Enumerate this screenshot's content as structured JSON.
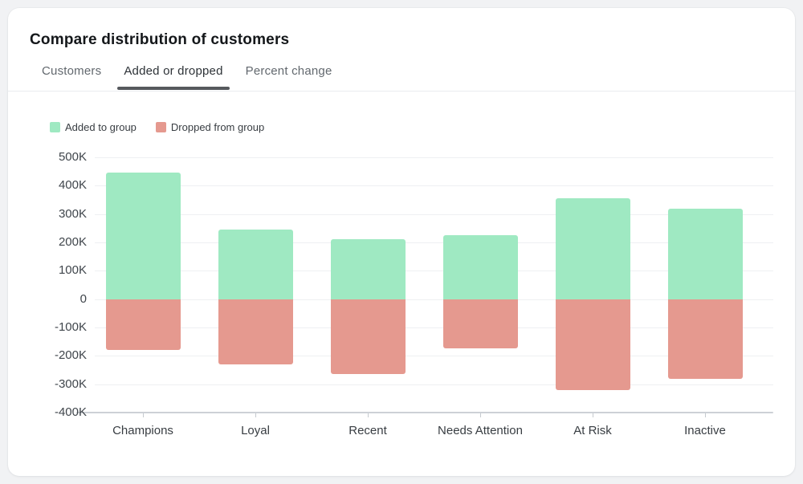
{
  "header": {
    "title": "Compare distribution of customers"
  },
  "tabs": [
    {
      "label": "Customers",
      "active": false
    },
    {
      "label": "Added or dropped",
      "active": true
    },
    {
      "label": "Percent change",
      "active": false
    }
  ],
  "ui": {
    "tab_underline_color": "#56595d"
  },
  "chart_data": {
    "type": "bar",
    "title": "",
    "xlabel": "",
    "ylabel": "",
    "categories": [
      "Champions",
      "Loyal",
      "Recent",
      "Needs Attention",
      "At Risk",
      "Inactive"
    ],
    "series": [
      {
        "name": "Added to group",
        "color": "#9fe9c2",
        "values": [
          445000,
          245000,
          210000,
          225000,
          355000,
          320000
        ]
      },
      {
        "name": "Dropped from group",
        "color": "#e5998f",
        "values": [
          -180000,
          -230000,
          -265000,
          -175000,
          -320000,
          -280000
        ]
      }
    ],
    "ylim": [
      -400000,
      500000
    ],
    "y_ticks": [
      {
        "value": 500000,
        "label": "500K"
      },
      {
        "value": 400000,
        "label": "400K"
      },
      {
        "value": 300000,
        "label": "300K"
      },
      {
        "value": 200000,
        "label": "200K"
      },
      {
        "value": 100000,
        "label": "100K"
      },
      {
        "value": 0,
        "label": "0"
      },
      {
        "value": -100000,
        "label": "-100K"
      },
      {
        "value": -200000,
        "label": "-200K"
      },
      {
        "value": -300000,
        "label": "-300K"
      },
      {
        "value": -400000,
        "label": "-400K"
      }
    ],
    "grid": true,
    "legend_position": "top-left"
  }
}
